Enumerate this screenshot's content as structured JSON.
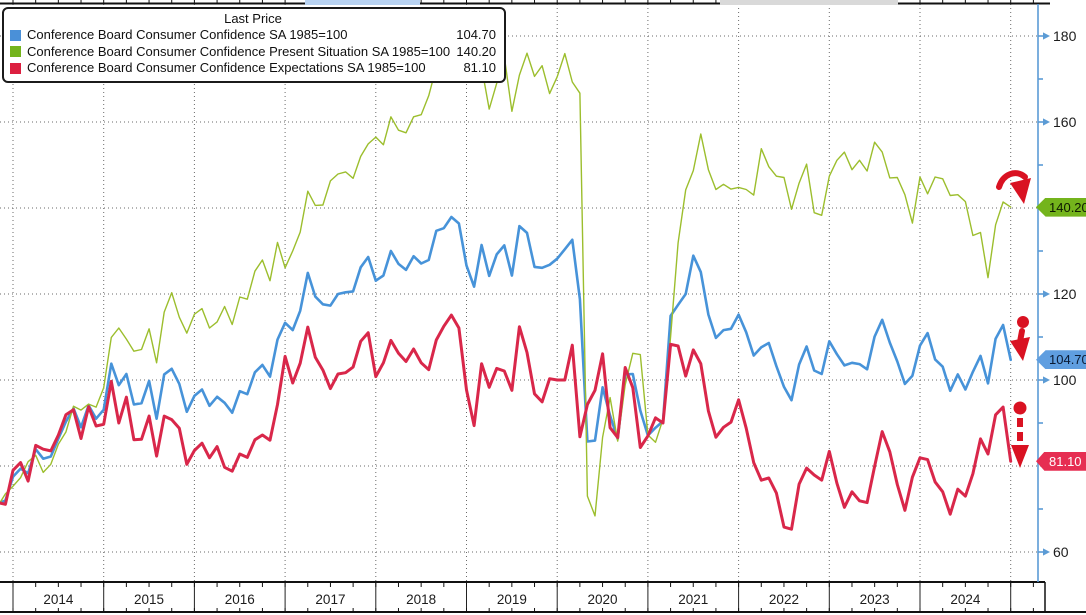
{
  "window": {
    "background": "#ffffff"
  },
  "legend": {
    "title": "Last Price",
    "items": [
      {
        "label": "Conference Board Consumer Confidence SA 1985=100",
        "value": "104.70",
        "color": "#4a90d8"
      },
      {
        "label": "Conference Board Consumer Confidence Present Situation SA 1985=100",
        "value": "140.20",
        "color": "#74b41c"
      },
      {
        "label": "Conference Board Consumer Confidence Expectations SA 1985=100",
        "value": "81.10",
        "color": "#dc1f40"
      }
    ]
  },
  "y_axis": {
    "labeled_ticks": [
      180,
      160,
      120,
      100,
      60
    ],
    "minor_ticks": [
      170,
      150,
      130,
      110,
      90,
      70
    ],
    "ticks_hidden_by_badges": [
      140,
      80
    ],
    "axis_color": "#5b9bd5",
    "text_color": "#1c1c1c"
  },
  "x_axis": {
    "years": [
      "2014",
      "2015",
      "2016",
      "2017",
      "2018",
      "2019",
      "2020",
      "2021",
      "2022",
      "2023",
      "2024"
    ],
    "text_color": "#1c1c1c"
  },
  "badges": [
    {
      "value": "140.20",
      "y_value": 140.2,
      "bg": "#74b41c",
      "text_color": "#0d1a00"
    },
    {
      "value": "104.70",
      "y_value": 104.7,
      "bg": "#5f9ee0",
      "text_color": "#0a1a33"
    },
    {
      "value": "81.10",
      "y_value": 81.1,
      "bg": "#e62e52",
      "text_color": "#ffffff"
    }
  ],
  "grid": {
    "h_values": [
      60,
      80,
      100,
      120,
      140,
      160,
      180
    ],
    "color": "#6a6a6a",
    "style": "dotted"
  },
  "top_strip": {
    "scrollbar_thumb_color": "#b9d3f2",
    "range_segment_color": "#d9d9d9"
  },
  "annotations": [
    {
      "name": "present-drop-arrow",
      "style": "solid-swoosh-down"
    },
    {
      "name": "headline-drop-arrow",
      "style": "dot-solid-arrow-down"
    },
    {
      "name": "expectations-drop-arrow",
      "style": "dot-dashed-arrow-down"
    }
  ],
  "annotation_color": "#d91222",
  "chart_data": {
    "type": "line",
    "title": "Last Price",
    "x_start": "2013-10",
    "x_end": "2024-12",
    "freq": "monthly",
    "ylim": [
      53,
      187
    ],
    "grid": true,
    "legend_position": "top-left",
    "series": [
      {
        "name": "Conference Board Consumer Confidence SA 1985=100",
        "color": "#4793d9",
        "width": 2.6,
        "last": 104.7,
        "values": [
          71.2,
          72.0,
          77.5,
          79.4,
          78.3,
          83.9,
          81.7,
          82.2,
          86.4,
          90.3,
          93.4,
          89.0,
          94.1,
          91.0,
          93.1,
          103.8,
          98.8,
          101.4,
          94.3,
          94.6,
          99.8,
          91.0,
          101.3,
          102.6,
          99.1,
          92.6,
          96.3,
          97.8,
          94.0,
          96.1,
          94.7,
          92.4,
          97.4,
          96.7,
          101.8,
          103.5,
          100.8,
          109.4,
          113.3,
          111.6,
          116.1,
          124.9,
          119.4,
          117.6,
          117.3,
          120.0,
          120.4,
          120.6,
          126.2,
          128.6,
          123.1,
          124.3,
          130.0,
          127.0,
          125.6,
          128.8,
          127.1,
          127.9,
          134.7,
          135.3,
          137.9,
          136.4,
          126.6,
          121.7,
          131.4,
          124.2,
          129.2,
          131.3,
          124.3,
          135.8,
          134.2,
          126.3,
          126.1,
          126.8,
          128.2,
          130.4,
          132.6,
          118.8,
          85.7,
          85.9,
          98.3,
          91.7,
          86.3,
          101.3,
          101.4,
          92.9,
          87.1,
          88.9,
          90.4,
          114.9,
          117.5,
          120.0,
          128.9,
          125.1,
          115.2,
          109.8,
          111.6,
          111.9,
          115.2,
          111.1,
          105.7,
          107.6,
          108.6,
          103.2,
          98.4,
          95.3,
          103.6,
          107.8,
          102.2,
          101.4,
          109.0,
          106.0,
          103.4,
          104.0,
          103.7,
          102.5,
          110.1,
          114.0,
          108.7,
          104.3,
          99.1,
          101.0,
          108.0,
          110.9,
          104.8,
          103.1,
          97.5,
          101.3,
          97.8,
          101.9,
          105.6,
          99.2,
          109.6,
          112.8,
          104.7
        ]
      },
      {
        "name": "Conference Board Consumer Confidence Present Situation SA 1985=100",
        "color": "#9cbe2d",
        "width": 1.4,
        "last": 140.2,
        "values": [
          70.7,
          73.5,
          75.3,
          77.3,
          81.0,
          82.5,
          78.5,
          80.4,
          85.1,
          87.9,
          93.9,
          93.0,
          94.4,
          93.7,
          98.2,
          109.9,
          112.1,
          109.5,
          106.7,
          107.1,
          111.9,
          104.0,
          115.8,
          120.3,
          114.6,
          110.9,
          115.3,
          116.6,
          112.1,
          113.5,
          117.1,
          112.9,
          119.3,
          118.8,
          125.3,
          127.9,
          123.1,
          132.0,
          126.1,
          130.0,
          134.4,
          143.9,
          140.6,
          140.7,
          146.3,
          147.9,
          148.4,
          146.9,
          152.0,
          154.9,
          156.5,
          154.7,
          161.2,
          158.1,
          157.5,
          161.2,
          161.7,
          166.1,
          172.8,
          169.4,
          171.9,
          172.7,
          169.9,
          170.2,
          172.8,
          163.0,
          169.0,
          175.2,
          162.5,
          170.9,
          176.0,
          170.6,
          173.1,
          166.6,
          170.5,
          175.9,
          169.3,
          166.7,
          73.0,
          68.4,
          86.7,
          95.9,
          85.8,
          98.9,
          106.2,
          105.9,
          87.2,
          85.5,
          90.9,
          110.1,
          131.9,
          144.2,
          148.7,
          157.2,
          148.9,
          144.3,
          145.5,
          144.4,
          144.8,
          144.3,
          143.0,
          153.8,
          149.6,
          147.4,
          147.1,
          139.7,
          145.8,
          150.2,
          138.9,
          138.3,
          147.4,
          151.1,
          153.0,
          148.9,
          151.1,
          148.6,
          155.3,
          153.0,
          147.0,
          147.1,
          143.1,
          136.5,
          147.2,
          143.3,
          147.2,
          146.8,
          142.9,
          143.1,
          141.5,
          133.6,
          134.3,
          123.8,
          136.1,
          141.4,
          140.2
        ]
      },
      {
        "name": "Conference Board Consumer Confidence Expectations SA 1985=100",
        "color": "#d9274a",
        "width": 3,
        "last": 81.1,
        "values": [
          71.5,
          71.1,
          79.0,
          80.8,
          76.5,
          84.8,
          83.9,
          83.5,
          87.2,
          91.9,
          93.1,
          86.4,
          93.8,
          89.3,
          89.7,
          99.7,
          90.0,
          96.0,
          86.1,
          86.2,
          91.6,
          82.3,
          91.6,
          90.8,
          88.8,
          80.4,
          83.6,
          85.3,
          81.9,
          84.5,
          79.7,
          78.8,
          82.8,
          82.0,
          86.1,
          87.2,
          86.0,
          94.3,
          105.5,
          99.3,
          103.9,
          112.3,
          105.3,
          102.3,
          98.0,
          101.4,
          101.7,
          103.0,
          109.0,
          111.0,
          100.8,
          104.0,
          109.2,
          106.2,
          104.3,
          107.2,
          104.0,
          102.4,
          109.3,
          112.5,
          115.1,
          112.1,
          97.7,
          89.4,
          103.8,
          98.3,
          102.7,
          102.1,
          97.6,
          112.4,
          106.4,
          96.8,
          94.9,
          100.3,
          100.0,
          100.0,
          108.1,
          86.8,
          94.3,
          97.6,
          106.1,
          88.9,
          86.6,
          102.9,
          98.2,
          84.3,
          87.0,
          91.2,
          90.0,
          108.3,
          107.9,
          100.9,
          107.0,
          103.8,
          92.8,
          86.7,
          89.0,
          90.2,
          95.4,
          88.8,
          80.8,
          76.7,
          77.2,
          73.7,
          65.8,
          65.3,
          75.8,
          79.5,
          77.9,
          76.7,
          83.4,
          76.0,
          70.4,
          74.0,
          71.9,
          71.5,
          79.9,
          88.0,
          83.3,
          75.7,
          69.7,
          77.4,
          81.9,
          81.5,
          76.3,
          74.0,
          68.8,
          74.6,
          73.0,
          78.2,
          86.3,
          82.8,
          91.9,
          93.7,
          81.1
        ]
      }
    ]
  }
}
